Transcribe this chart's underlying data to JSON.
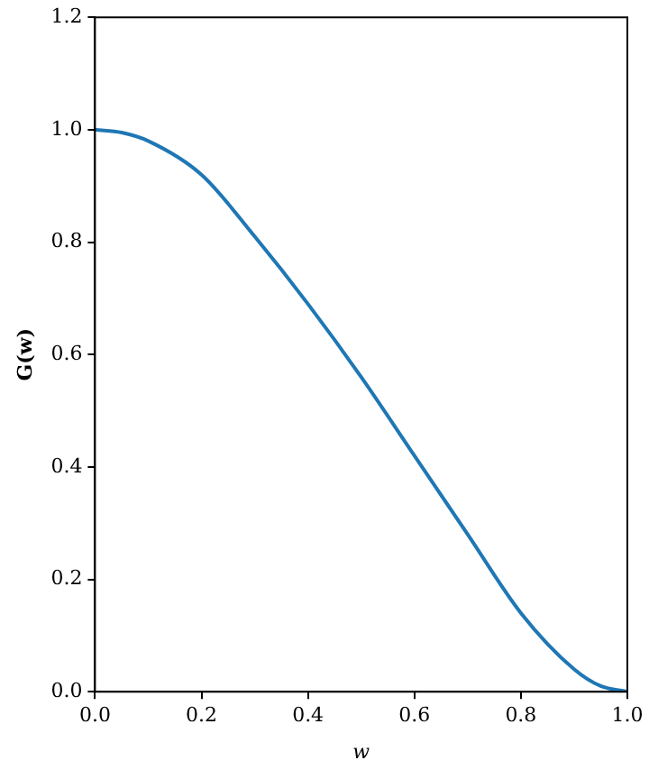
{
  "chart_data": {
    "type": "line",
    "xlabel": "w",
    "ylabel": "G(w)",
    "x": [
      0,
      0.05,
      0.1,
      0.2,
      0.3,
      0.4,
      0.5,
      0.6,
      0.7,
      0.8,
      0.9,
      0.95,
      1.0
    ],
    "series": [
      {
        "color": "#1f77b4",
        "values": [
          1.0,
          0.995,
          0.98,
          0.92,
          0.81,
          0.69,
          0.56,
          0.42,
          0.28,
          0.14,
          0.04,
          0.01,
          0.0
        ]
      }
    ],
    "xlim": [
      0,
      1.0
    ],
    "xticks": [
      {
        "value": 0,
        "label": "0.0"
      },
      {
        "value": 0.2,
        "label": "0.2"
      },
      {
        "value": 0.4,
        "label": "0.4"
      },
      {
        "value": 0.6,
        "label": "0.6"
      },
      {
        "value": 0.8,
        "label": "0.8"
      },
      {
        "value": 1.0,
        "label": "1.0"
      }
    ],
    "ylim": [
      0,
      1.2
    ],
    "yticks": [
      {
        "value": 0,
        "label": "0.0"
      },
      {
        "value": 0.2,
        "label": "0.2"
      },
      {
        "value": 0.4,
        "label": "0.4"
      },
      {
        "value": 0.6,
        "label": "0.6"
      },
      {
        "value": 0.8,
        "label": "0.8"
      },
      {
        "value": 1.0,
        "label": "1.0"
      },
      {
        "value": 1.2,
        "label": "1.2"
      }
    ],
    "grid": false,
    "legend": false,
    "marker": "none",
    "line_style": "solid"
  }
}
